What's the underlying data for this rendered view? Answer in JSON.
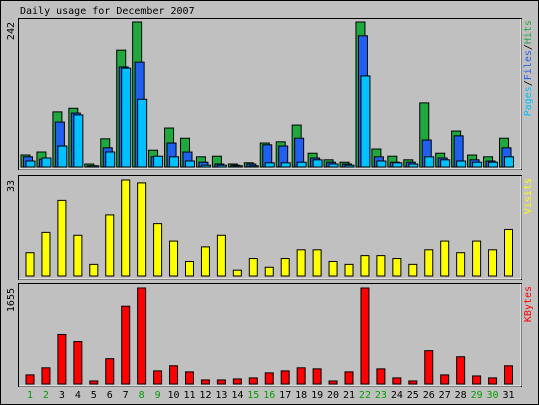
{
  "chart_data": {
    "type": "bar",
    "title": "Daily usage for December 2007",
    "categories": [
      "1",
      "2",
      "3",
      "4",
      "5",
      "6",
      "7",
      "8",
      "9",
      "10",
      "11",
      "12",
      "13",
      "14",
      "15",
      "16",
      "17",
      "18",
      "19",
      "20",
      "21",
      "22",
      "23",
      "24",
      "25",
      "26",
      "27",
      "28",
      "29",
      "30",
      "31"
    ],
    "category_colors": [
      "#00a000",
      "#00a000",
      "#000000",
      "#000000",
      "#000000",
      "#000000",
      "#000000",
      "#00a000",
      "#00a000",
      "#000000",
      "#000000",
      "#000000",
      "#000000",
      "#000000",
      "#00a000",
      "#00a000",
      "#000000",
      "#000000",
      "#000000",
      "#000000",
      "#000000",
      "#00a000",
      "#00a000",
      "#000000",
      "#000000",
      "#000000",
      "#000000",
      "#000000",
      "#00a000",
      "#00a000",
      "#000000"
    ],
    "legend_separator": "/",
    "panels": [
      {
        "ylim": [
          0,
          242
        ],
        "yticks": [
          242
        ],
        "series": [
          {
            "name": "Hits",
            "color": "#20a840",
            "values": [
              20,
              25,
              92,
              98,
              5,
              47,
              195,
              242,
              28,
              65,
              48,
              17,
              18,
              5,
              7,
              40,
              42,
              70,
              23,
              12,
              8,
              242,
              30,
              18,
              12,
              107,
              23,
              60,
              20,
              17,
              48
            ]
          },
          {
            "name": "Files",
            "color": "#2060f0",
            "values": [
              17,
              13,
              75,
              90,
              2,
              32,
              167,
              175,
              17,
              40,
              25,
              8,
              5,
              3,
              5,
              37,
              35,
              48,
              15,
              8,
              5,
              219,
              17,
              8,
              8,
              45,
              15,
              52,
              12,
              10,
              32
            ]
          },
          {
            "name": "Pages",
            "color": "#00c0ff",
            "values": [
              10,
              15,
              35,
              87,
              2,
              25,
              165,
              113,
              18,
              17,
              10,
              3,
              3,
              2,
              2,
              7,
              7,
              8,
              12,
              5,
              3,
              152,
              10,
              7,
              5,
              17,
              12,
              10,
              8,
              8,
              17
            ]
          }
        ]
      },
      {
        "ylim": [
          0,
          33
        ],
        "yticks": [
          33
        ],
        "series": [
          {
            "name": "Visits",
            "color": "#ffff00",
            "values": [
              8,
              15,
              26,
              14,
              4,
              21,
              33,
              32,
              18,
              12,
              5,
              10,
              14,
              2,
              6,
              3,
              6,
              9,
              9,
              5,
              4,
              7,
              7,
              6,
              4,
              9,
              12,
              8,
              12,
              9,
              16
            ]
          }
        ]
      },
      {
        "ylim": [
          0,
          1655
        ],
        "yticks": [
          1655
        ],
        "series": [
          {
            "name": "KBytes",
            "color": "#ff0000",
            "values": [
              157,
              279,
              854,
              732,
              52,
              436,
              1341,
              1655,
              226,
              314,
              209,
              70,
              70,
              87,
              105,
              192,
              226,
              279,
              261,
              52,
              209,
              1655,
              261,
              105,
              52,
              575,
              157,
              470,
              139,
              105,
              314
            ]
          }
        ]
      }
    ]
  }
}
